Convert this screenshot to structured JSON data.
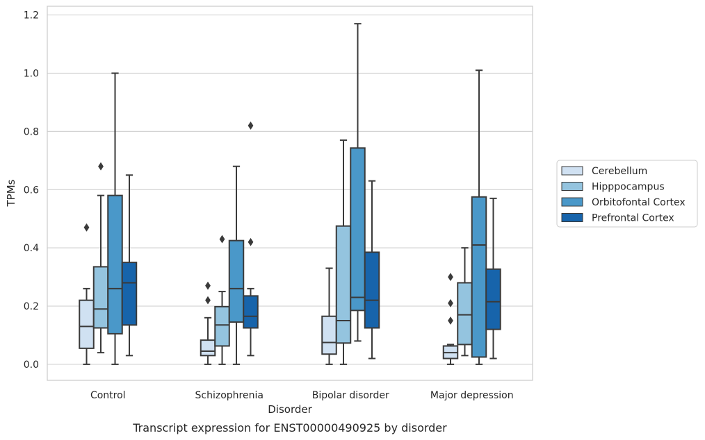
{
  "caption": "Transcript expression for ENST00000490925 by disorder",
  "chart_data": {
    "type": "boxplot",
    "xlabel": "Disorder",
    "ylabel": "TPMs",
    "ylim": [
      -0.055,
      1.23
    ],
    "yticks": [
      "0.0",
      "0.2",
      "0.4",
      "0.6",
      "0.8",
      "1.0",
      "1.2"
    ],
    "ytick_values": [
      0.0,
      0.2,
      0.4,
      0.6,
      0.8,
      1.0,
      1.2
    ],
    "grid": true,
    "legend_position": "right",
    "categories": [
      "Control",
      "Schizophrenia",
      "Bipolar disorder",
      "Major depression"
    ],
    "series": [
      {
        "name": "Cerebellum",
        "color": "#d0e1f2",
        "boxes": [
          {
            "whisker_low": 0.0,
            "q1": 0.055,
            "median": 0.13,
            "q3": 0.22,
            "whisker_high": 0.26,
            "outliers": [
              0.47
            ]
          },
          {
            "whisker_low": 0.0,
            "q1": 0.03,
            "median": 0.045,
            "q3": 0.083,
            "whisker_high": 0.16,
            "outliers": [
              0.22,
              0.27
            ]
          },
          {
            "whisker_low": 0.0,
            "q1": 0.035,
            "median": 0.075,
            "q3": 0.165,
            "whisker_high": 0.33,
            "outliers": []
          },
          {
            "whisker_low": 0.0,
            "q1": 0.02,
            "median": 0.04,
            "q3": 0.063,
            "whisker_high": 0.068,
            "outliers": [
              0.15,
              0.21,
              0.3
            ]
          }
        ]
      },
      {
        "name": "Hipppocampus",
        "color": "#94c4df",
        "boxes": [
          {
            "whisker_low": 0.04,
            "q1": 0.125,
            "median": 0.19,
            "q3": 0.335,
            "whisker_high": 0.58,
            "outliers": [
              0.68
            ]
          },
          {
            "whisker_low": 0.0,
            "q1": 0.063,
            "median": 0.135,
            "q3": 0.198,
            "whisker_high": 0.25,
            "outliers": [
              0.43
            ]
          },
          {
            "whisker_low": 0.0,
            "q1": 0.073,
            "median": 0.15,
            "q3": 0.475,
            "whisker_high": 0.77,
            "outliers": []
          },
          {
            "whisker_low": 0.03,
            "q1": 0.068,
            "median": 0.17,
            "q3": 0.28,
            "whisker_high": 0.4,
            "outliers": []
          }
        ]
      },
      {
        "name": "Orbitofontal Cortex",
        "color": "#4a98c9",
        "boxes": [
          {
            "whisker_low": 0.0,
            "q1": 0.105,
            "median": 0.26,
            "q3": 0.58,
            "whisker_high": 1.0,
            "outliers": []
          },
          {
            "whisker_low": 0.0,
            "q1": 0.145,
            "median": 0.26,
            "q3": 0.425,
            "whisker_high": 0.68,
            "outliers": []
          },
          {
            "whisker_low": 0.08,
            "q1": 0.185,
            "median": 0.23,
            "q3": 0.743,
            "whisker_high": 1.17,
            "outliers": []
          },
          {
            "whisker_low": 0.0,
            "q1": 0.025,
            "median": 0.41,
            "q3": 0.575,
            "whisker_high": 1.01,
            "outliers": []
          }
        ]
      },
      {
        "name": "Prefrontal Cortex",
        "color": "#1764ab",
        "boxes": [
          {
            "whisker_low": 0.03,
            "q1": 0.135,
            "median": 0.28,
            "q3": 0.35,
            "whisker_high": 0.65,
            "outliers": []
          },
          {
            "whisker_low": 0.03,
            "q1": 0.125,
            "median": 0.165,
            "q3": 0.235,
            "whisker_high": 0.26,
            "outliers": [
              0.42,
              0.82
            ]
          },
          {
            "whisker_low": 0.02,
            "q1": 0.125,
            "median": 0.22,
            "q3": 0.385,
            "whisker_high": 0.63,
            "outliers": []
          },
          {
            "whisker_low": 0.02,
            "q1": 0.12,
            "median": 0.215,
            "q3": 0.327,
            "whisker_high": 0.57,
            "outliers": []
          }
        ]
      }
    ]
  }
}
